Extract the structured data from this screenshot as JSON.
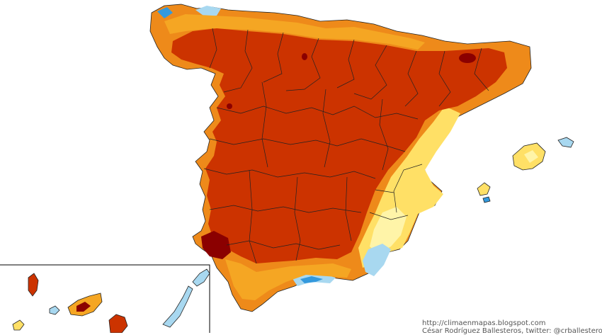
{
  "credits": {
    "url": "http://climaenmapas.blogspot.com",
    "author": "César Rodríguez Ballesteros, twitter: @crballesteros"
  },
  "colors": {
    "background": "#ffffff",
    "dominant_fill": "#cc3300",
    "dark_red": "#8b0000",
    "orange": "#ee7700",
    "amber": "#f5a623",
    "yellow": "#ffe066",
    "pale_yellow": "#fff4a8",
    "light_blue": "#a8d8f0",
    "blue": "#3399dd",
    "border_line": "#222222",
    "inset_frame": "#000000"
  },
  "legend": "none"
}
